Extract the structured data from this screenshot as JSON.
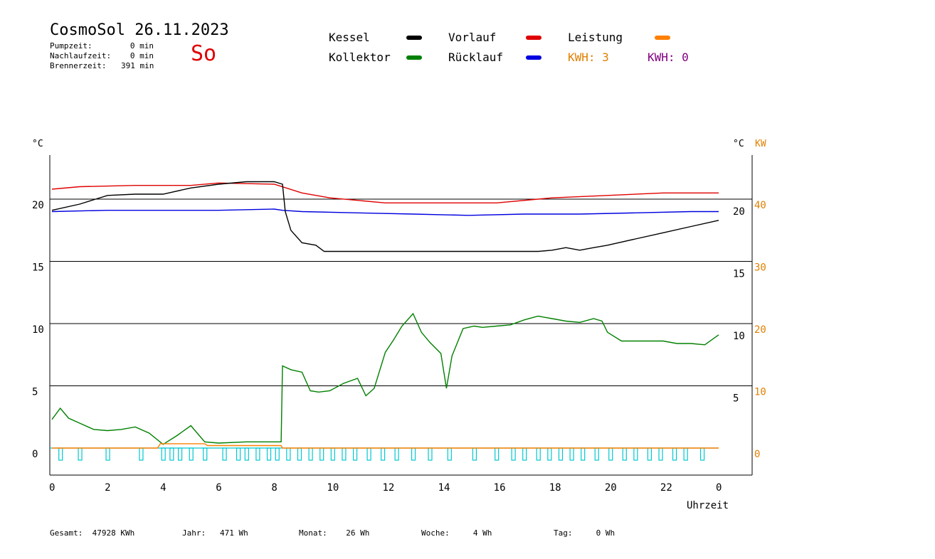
{
  "header": {
    "title": "CosmoSol 26.11.2023",
    "day": "So",
    "stats": [
      {
        "label": "Pumpzeit:",
        "value": "0 min"
      },
      {
        "label": "Nachlaufzeit:",
        "value": "0 min"
      },
      {
        "label": "Brennerzeit:",
        "value": "391 min"
      }
    ]
  },
  "legend": {
    "kessel": {
      "label": "Kessel",
      "color": "#000000"
    },
    "vorlauf": {
      "label": "Vorlauf",
      "color": "#e00000"
    },
    "leistung": {
      "label": "Leistung",
      "color": "#ff8000"
    },
    "kollektor": {
      "label": "Kollektor",
      "color": "#008000"
    },
    "ruecklauf": {
      "label": "Rücklauf",
      "color": "#0000e0"
    },
    "kwh1": "KWH: 3",
    "kwh2": "KWH: 0",
    "kwh1_color": "#e08000",
    "kwh2_color": "#800080"
  },
  "footer": {
    "gesamt": "Gesamt:  47928 KWh",
    "jahr": "Jahr:   471 Wh",
    "monat": "Monat:    26 Wh",
    "woche": "Woche:     4 Wh",
    "tag": "Tag:     0 Wh"
  },
  "chart_data": {
    "type": "line",
    "xlabel": "Uhrzeit",
    "ylabel_left": "°C",
    "ylabel_right": "°C",
    "ylabel_right2": "KW",
    "xlim": [
      0,
      24
    ],
    "ylim": [
      -2,
      23.5
    ],
    "x_ticks": [
      "0",
      "2",
      "4",
      "6",
      "8",
      "10",
      "12",
      "14",
      "16",
      "18",
      "20",
      "22",
      "0"
    ],
    "y_ticks_left": [
      "0",
      "5",
      "10",
      "15",
      "20"
    ],
    "y_ticks_right": [
      "5",
      "10",
      "15",
      "20"
    ],
    "y_ticks_kw": [
      "0",
      "10",
      "20",
      "30",
      "40"
    ],
    "grid": true,
    "series": [
      {
        "name": "Vorlauf",
        "color": "#e00000",
        "x": [
          0,
          1,
          3,
          5,
          6,
          8,
          9,
          10,
          12,
          14,
          16,
          18,
          20,
          22,
          24
        ],
        "y": [
          20.8,
          21.0,
          21.1,
          21.1,
          21.3,
          21.2,
          20.5,
          20.1,
          19.7,
          19.7,
          19.7,
          20.1,
          20.3,
          20.5,
          20.5
        ]
      },
      {
        "name": "Rücklauf",
        "color": "#0000e0",
        "x": [
          0,
          2,
          4,
          6,
          8,
          8.3,
          9,
          11,
          13,
          15,
          17,
          19,
          21,
          23,
          24
        ],
        "y": [
          19.0,
          19.1,
          19.1,
          19.1,
          19.2,
          19.1,
          19.0,
          18.9,
          18.8,
          18.7,
          18.8,
          18.8,
          18.9,
          19.0,
          19.0
        ]
      },
      {
        "name": "Kessel",
        "color": "#000000",
        "x": [
          0,
          1,
          2,
          3,
          4,
          5,
          6,
          7,
          8,
          8.3,
          8.4,
          8.6,
          9,
          9.5,
          9.8,
          12,
          15,
          17.5,
          18,
          18.5,
          19,
          19.5,
          20,
          21,
          22,
          23,
          24
        ],
        "y": [
          19.1,
          19.6,
          20.3,
          20.4,
          20.4,
          20.9,
          21.2,
          21.4,
          21.4,
          21.2,
          19.0,
          17.5,
          16.5,
          16.3,
          15.8,
          15.8,
          15.8,
          15.8,
          15.9,
          16.1,
          15.9,
          16.1,
          16.3,
          16.8,
          17.3,
          17.8,
          18.3
        ]
      },
      {
        "name": "Kollektor",
        "color": "#008000",
        "x": [
          0,
          0.3,
          0.6,
          1,
          1.5,
          2,
          2.5,
          3,
          3.5,
          4,
          4.5,
          5,
          5.5,
          6,
          7,
          8,
          8.25,
          8.3,
          8.6,
          9,
          9.3,
          9.6,
          10,
          10.5,
          11,
          11.3,
          11.6,
          12,
          12.3,
          12.6,
          13,
          13.3,
          13.6,
          14,
          14.2,
          14.4,
          14.8,
          15.2,
          15.5,
          16,
          16.5,
          17,
          17.5,
          18,
          18.5,
          19,
          19.5,
          19.8,
          20,
          20.5,
          21,
          21.5,
          22,
          22.5,
          23,
          23.5,
          24
        ],
        "y": [
          2.3,
          3.2,
          2.4,
          2.0,
          1.5,
          1.4,
          1.5,
          1.7,
          1.2,
          0.3,
          1.0,
          1.8,
          0.5,
          0.4,
          0.5,
          0.5,
          0.5,
          6.6,
          6.3,
          6.1,
          4.6,
          4.5,
          4.6,
          5.2,
          5.6,
          4.2,
          4.8,
          7.7,
          8.7,
          9.8,
          10.8,
          9.3,
          8.5,
          7.6,
          4.8,
          7.4,
          9.6,
          9.8,
          9.7,
          9.8,
          9.9,
          10.3,
          10.6,
          10.4,
          10.2,
          10.1,
          10.4,
          10.2,
          9.3,
          8.6,
          8.6,
          8.6,
          8.6,
          8.4,
          8.4,
          8.3,
          9.1
        ]
      },
      {
        "name": "Leistung",
        "color": "#ff8000",
        "x": [
          0,
          3.8,
          3.9,
          5.5,
          5.6,
          8.25,
          8.3,
          24
        ],
        "y": [
          0,
          0,
          0.35,
          0.35,
          0.2,
          0.2,
          0,
          0
        ]
      }
    ],
    "pump_markers_color": "#00c8d0",
    "pump_markers_hours": [
      0.3,
      1.0,
      2.0,
      3.2,
      4.0,
      4.3,
      4.6,
      5.0,
      5.5,
      6.2,
      6.7,
      7.0,
      7.4,
      7.8,
      8.1,
      8.5,
      8.9,
      9.3,
      9.7,
      10.1,
      10.5,
      10.9,
      11.4,
      11.9,
      12.4,
      13.0,
      13.6,
      14.3,
      15.2,
      16.0,
      16.6,
      17.0,
      17.5,
      17.9,
      18.3,
      18.7,
      19.1,
      19.6,
      20.1,
      20.6,
      21.0,
      21.5,
      21.9,
      22.4,
      22.8,
      23.4
    ]
  }
}
